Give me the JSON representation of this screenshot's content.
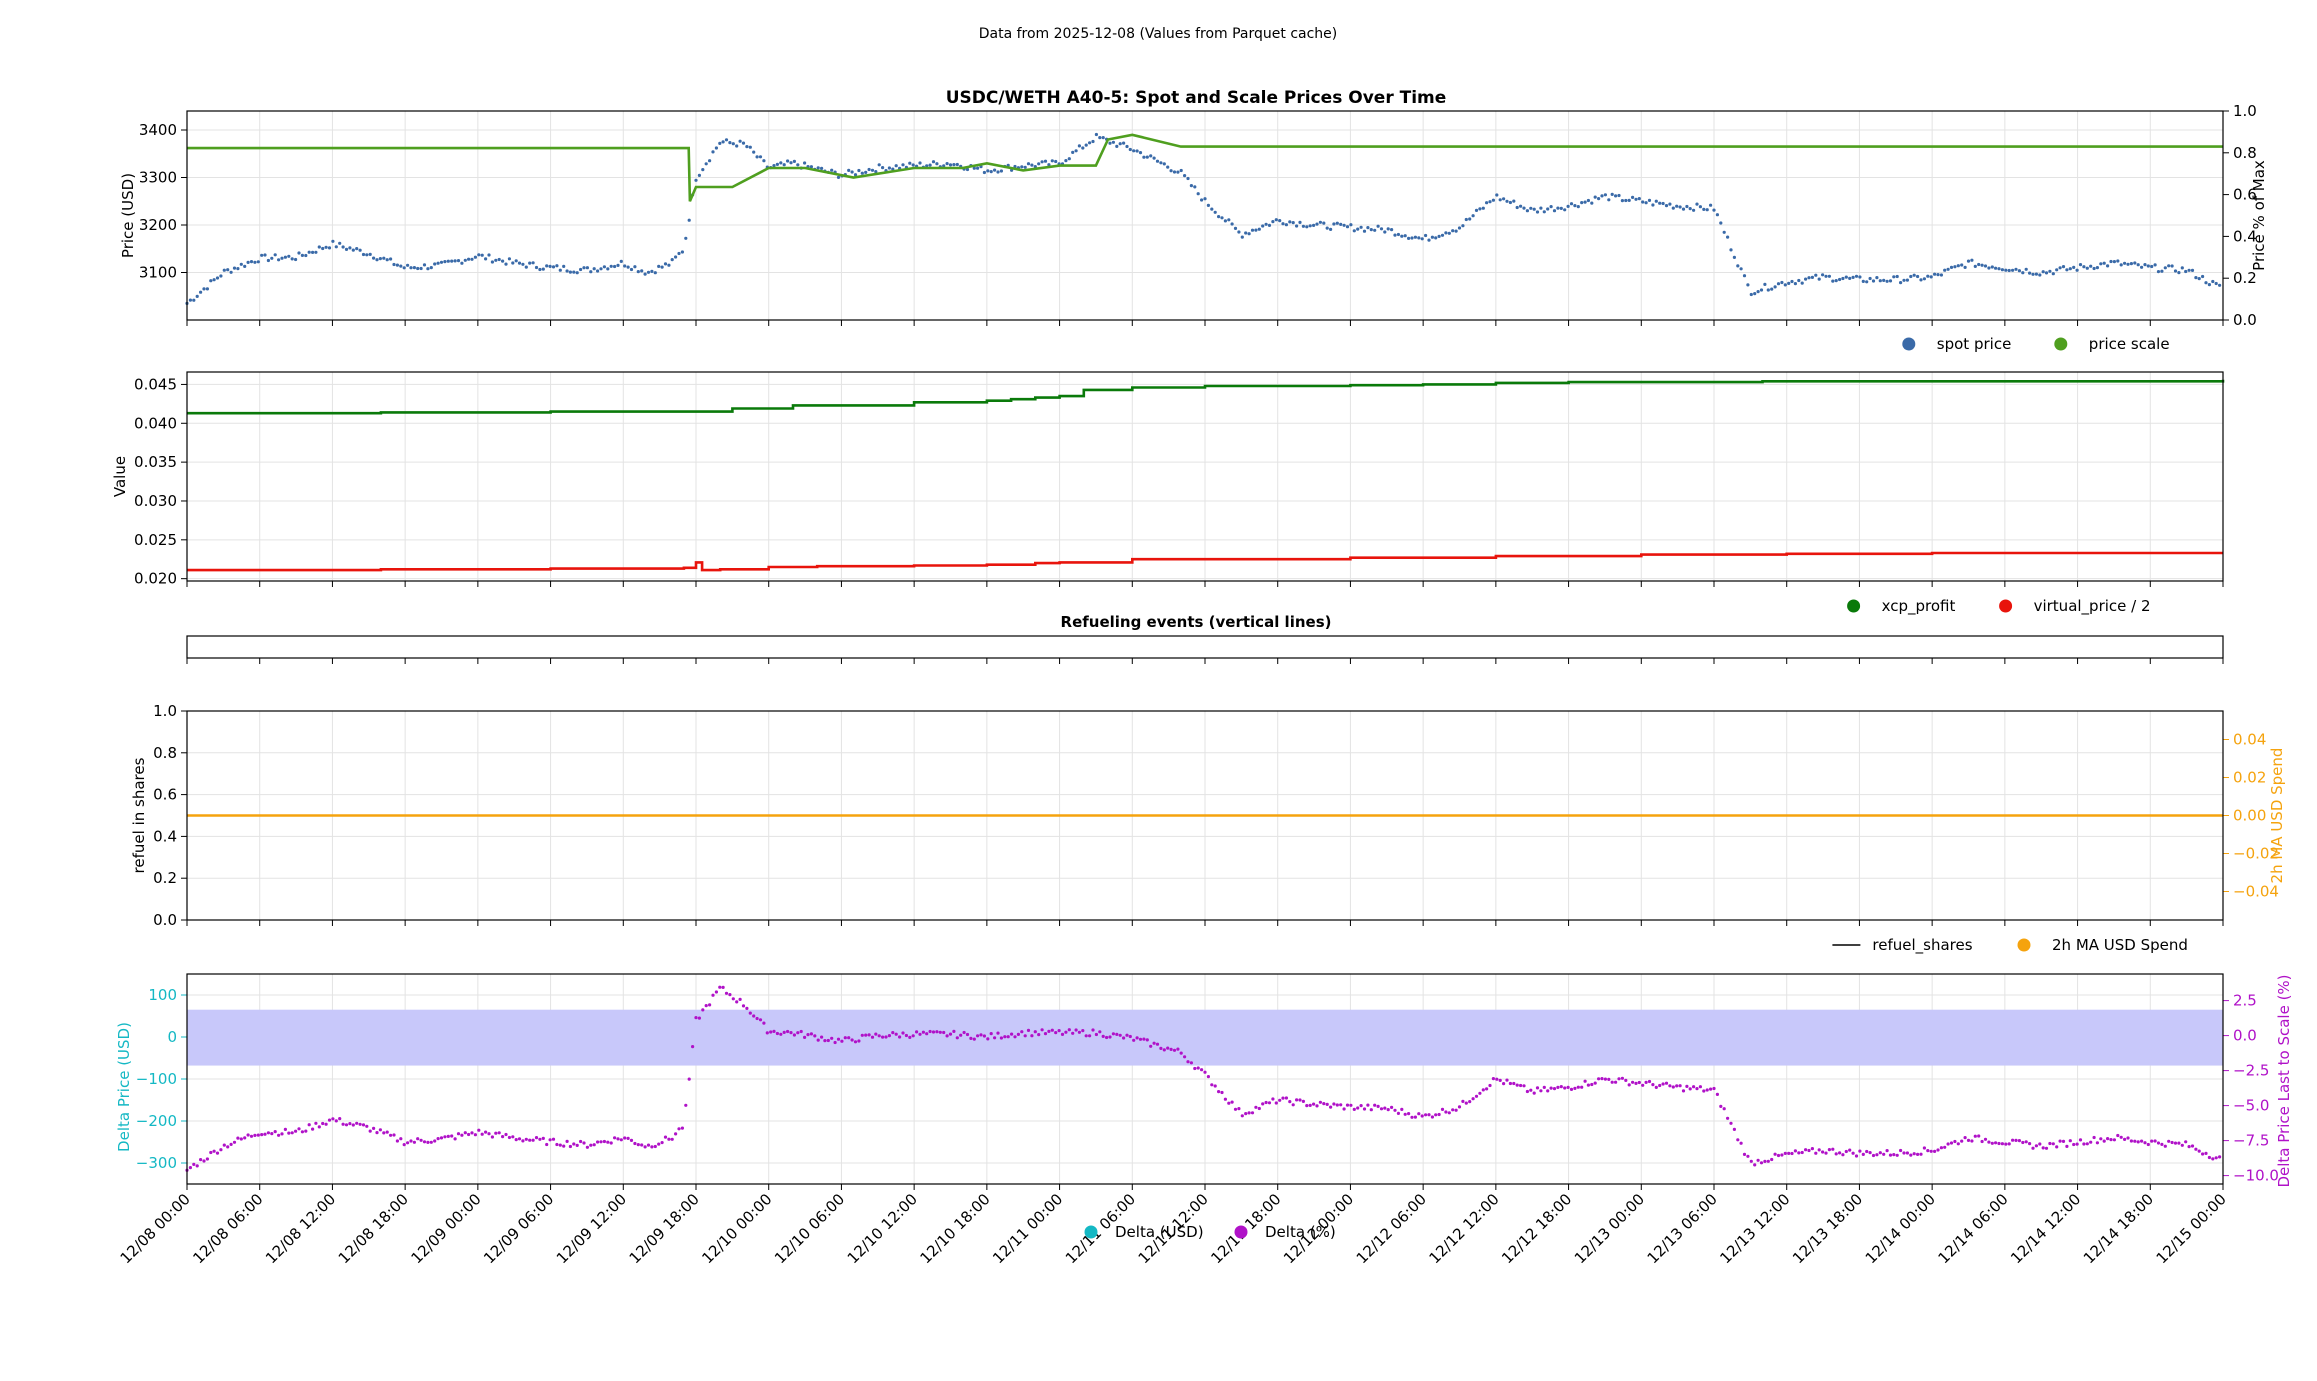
{
  "suptitle": "Data from 2025-12-08 (Values from Parquet cache)",
  "x_axis": {
    "start": "2025-12-08T00:00",
    "end": "2025-12-15T00:00",
    "tick_labels": [
      "12/08 00:00",
      "12/08 06:00",
      "12/08 12:00",
      "12/08 18:00",
      "12/09 00:00",
      "12/09 06:00",
      "12/09 12:00",
      "12/09 18:00",
      "12/10 00:00",
      "12/10 06:00",
      "12/10 12:00",
      "12/10 18:00",
      "12/11 00:00",
      "12/11 06:00",
      "12/11 12:00",
      "12/11 18:00",
      "12/12 00:00",
      "12/12 06:00",
      "12/12 12:00",
      "12/12 18:00",
      "12/13 00:00",
      "12/13 06:00",
      "12/13 12:00",
      "12/13 18:00",
      "12/14 00:00",
      "12/14 06:00",
      "12/14 12:00",
      "12/14 18:00",
      "12/15 00:00"
    ]
  },
  "colors": {
    "spot": "#3a6aa8",
    "scale": "#4f9f1f",
    "xcp": "#0a7a0a",
    "virtual": "#e8140c",
    "orange": "#f5a30e",
    "cyan": "#14b8c4",
    "magenta": "#b012c8",
    "band": "#c8c8fa"
  },
  "chart_data": [
    {
      "type": "scatter",
      "title": "USDC/WETH A40-5: Spot and Scale Prices Over Time",
      "ylabel": "Price (USD)",
      "ylabel_right": "Price % of Max",
      "ylim": [
        3000,
        3440
      ],
      "yticks": [
        "3100",
        "3200",
        "3300",
        "3400"
      ],
      "ylim_right": [
        0,
        1
      ],
      "yticks_right": [
        "0.0",
        "0.2",
        "0.4",
        "0.6",
        "0.8",
        "1.0"
      ],
      "legend": [
        {
          "name": "spot price",
          "marker": "dot",
          "color": "#3a6aa8"
        },
        {
          "name": "price scale",
          "marker": "dot",
          "color": "#4f9f1f"
        }
      ],
      "series": [
        {
          "name": "spot price",
          "x_hours": [
            0,
            3,
            6,
            9,
            12,
            15,
            18,
            21,
            24,
            27,
            30,
            33,
            36,
            38,
            40,
            41,
            42,
            44,
            46,
            48,
            50,
            54,
            57,
            60,
            63,
            66,
            69,
            72,
            75,
            78,
            82,
            84,
            87,
            90,
            93,
            96,
            99,
            102,
            105,
            108,
            111,
            114,
            117,
            120,
            123,
            126,
            129,
            132,
            135,
            138,
            141,
            144,
            147,
            150,
            153,
            156,
            159,
            162,
            165,
            168
          ],
          "values": [
            3035,
            3100,
            3130,
            3132,
            3160,
            3140,
            3110,
            3115,
            3135,
            3120,
            3110,
            3105,
            3120,
            3100,
            3120,
            3150,
            3300,
            3375,
            3370,
            3320,
            3330,
            3305,
            3320,
            3325,
            3330,
            3315,
            3325,
            3330,
            3385,
            3360,
            3310,
            3250,
            3180,
            3210,
            3200,
            3195,
            3190,
            3170,
            3195,
            3260,
            3230,
            3240,
            3260,
            3250,
            3240,
            3235,
            3060,
            3080,
            3090,
            3085,
            3085,
            3090,
            3120,
            3110,
            3100,
            3110,
            3120,
            3110,
            3105,
            3065
          ]
        },
        {
          "name": "price scale",
          "x_hours": [
            0,
            41.4,
            41.5,
            42,
            45,
            48,
            51,
            55,
            60,
            64,
            66,
            69,
            72,
            75,
            76,
            78,
            82,
            168
          ],
          "values": [
            3362,
            3362,
            3250,
            3280,
            3280,
            3320,
            3320,
            3300,
            3320,
            3320,
            3330,
            3315,
            3325,
            3325,
            3380,
            3390,
            3365,
            3365
          ]
        }
      ]
    },
    {
      "type": "line",
      "ylabel": "Value",
      "ylim": [
        0.0197,
        0.0466
      ],
      "yticks": [
        "0.020",
        "0.025",
        "0.030",
        "0.035",
        "0.040",
        "0.045"
      ],
      "legend": [
        {
          "name": "xcp_profit",
          "marker": "dot",
          "color": "#0a7a0a"
        },
        {
          "name": "virtual_price / 2",
          "marker": "dot",
          "color": "#e8140c"
        }
      ],
      "series": [
        {
          "name": "xcp_profit",
          "x_hours": [
            0,
            16,
            30,
            42,
            45,
            50,
            60,
            66,
            68,
            70,
            72,
            74,
            78,
            84,
            96,
            102,
            108,
            114,
            130,
            150,
            168
          ],
          "values": [
            0.0413,
            0.0414,
            0.0415,
            0.0415,
            0.0419,
            0.0423,
            0.0427,
            0.0429,
            0.0431,
            0.0433,
            0.0435,
            0.0443,
            0.0446,
            0.0448,
            0.0449,
            0.045,
            0.0452,
            0.0453,
            0.0454,
            0.0454,
            0.0456
          ]
        },
        {
          "name": "virtual_price / 2",
          "x_hours": [
            0,
            16,
            30,
            41,
            42,
            42.5,
            44,
            48,
            52,
            60,
            66,
            70,
            72,
            78,
            96,
            108,
            120,
            132,
            144,
            168
          ],
          "values": [
            0.0211,
            0.0212,
            0.0213,
            0.0214,
            0.0221,
            0.0211,
            0.0212,
            0.0215,
            0.0216,
            0.0217,
            0.0218,
            0.022,
            0.0221,
            0.0225,
            0.0227,
            0.0229,
            0.0231,
            0.0232,
            0.0233,
            0.0233
          ]
        }
      ]
    },
    {
      "type": "line",
      "title": "Refueling events (vertical lines)"
    },
    {
      "type": "line",
      "ylabel": "refuel in shares",
      "ylabel_right": "2h MA USD Spend",
      "ylim": [
        0,
        1
      ],
      "yticks": [
        "0.0",
        "0.2",
        "0.4",
        "0.6",
        "0.8",
        "1.0"
      ],
      "ylim_right": [
        -0.055,
        0.055
      ],
      "yticks_right": [
        "−0.04",
        "−0.02",
        "0.00",
        "0.02",
        "0.04"
      ],
      "legend": [
        {
          "name": "refuel_shares",
          "marker": "line",
          "color": "#000000"
        },
        {
          "name": "2h MA USD Spend",
          "marker": "dot",
          "color": "#f5a30e"
        }
      ],
      "series": [
        {
          "name": "2h MA USD Spend",
          "x_hours": [
            0,
            168
          ],
          "values": [
            0,
            0
          ]
        }
      ]
    },
    {
      "type": "scatter",
      "ylabel": "Delta Price (USD)",
      "ylabel_right": "Delta Price Last to Scale (%)",
      "ylim": [
        -350,
        150
      ],
      "yticks": [
        "−300",
        "−200",
        "−100",
        "0",
        "100"
      ],
      "ylim_right": [
        -10.6,
        4.4
      ],
      "yticks_right": [
        "−10.0",
        "−7.5",
        "−5.0",
        "−2.5",
        "0.0",
        "2.5"
      ],
      "band": [
        -68,
        65
      ],
      "legend": [
        {
          "name": "Delta (USD)",
          "marker": "dot",
          "color": "#14b8c4"
        },
        {
          "name": "Delta (%)",
          "marker": "dot",
          "color": "#b012c8"
        }
      ],
      "series": [
        {
          "name": "Delta (%)",
          "x_hours": [
            0,
            3,
            6,
            9,
            12,
            15,
            18,
            21,
            24,
            27,
            30,
            33,
            36,
            38,
            40,
            41,
            42,
            44,
            46,
            48,
            50,
            54,
            57,
            60,
            63,
            66,
            69,
            72,
            75,
            78,
            82,
            84,
            87,
            90,
            93,
            96,
            99,
            102,
            105,
            108,
            111,
            114,
            117,
            120,
            123,
            126,
            129,
            132,
            135,
            138,
            141,
            144,
            147,
            150,
            153,
            156,
            159,
            162,
            165,
            168
          ],
          "values": [
            -9.6,
            -7.9,
            -6.9,
            -6.9,
            -6.0,
            -6.6,
            -7.6,
            -7.4,
            -6.9,
            -7.3,
            -7.6,
            -7.8,
            -7.3,
            -7.9,
            -7.3,
            -6.4,
            1.1,
            3.4,
            2.2,
            0.3,
            0.2,
            -0.4,
            0.0,
            0.1,
            0.1,
            -0.1,
            0.2,
            0.2,
            0.2,
            -0.2,
            -1.2,
            -2.8,
            -5.6,
            -4.6,
            -4.9,
            -5.1,
            -5.2,
            -5.8,
            -5.1,
            -3.1,
            -4.0,
            -3.7,
            -3.1,
            -3.4,
            -3.7,
            -3.9,
            -9.1,
            -8.5,
            -8.2,
            -8.4,
            -8.4,
            -8.2,
            -7.3,
            -7.6,
            -7.9,
            -7.6,
            -7.3,
            -7.6,
            -7.8,
            -8.9
          ]
        }
      ]
    }
  ]
}
